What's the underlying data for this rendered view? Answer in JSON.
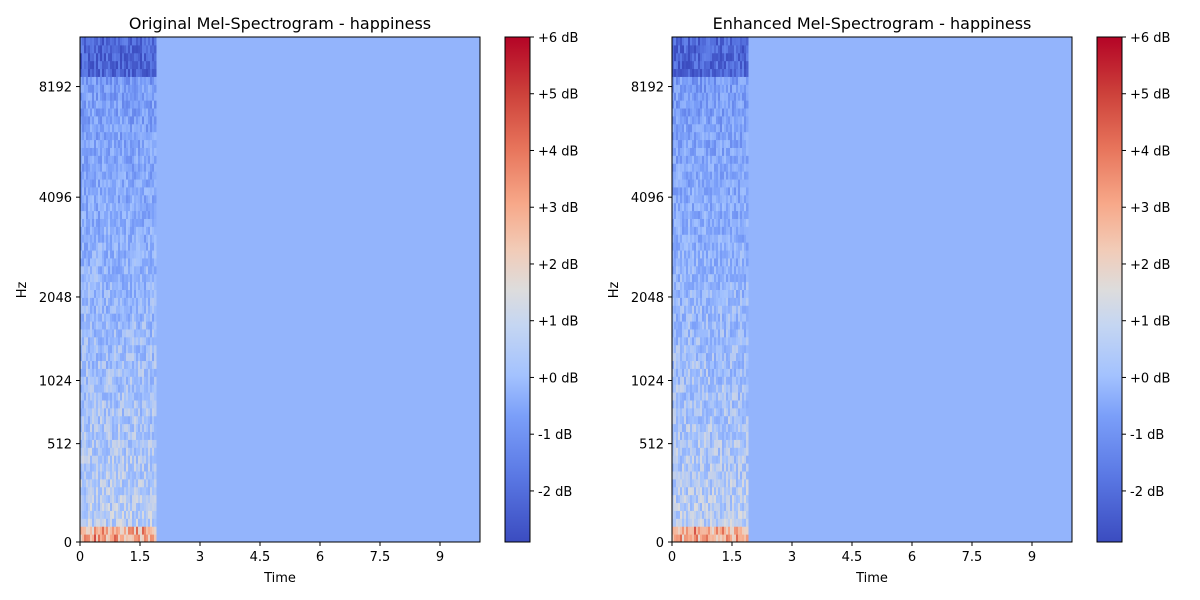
{
  "chart_data": [
    {
      "type": "heatmap",
      "title": "Original Mel-Spectrogram - happiness",
      "xlabel": "Time",
      "ylabel": "Hz",
      "x_ticks": [
        "0",
        "1.5",
        "3",
        "4.5",
        "6",
        "7.5",
        "9"
      ],
      "x_tick_values": [
        0,
        1.5,
        3,
        4.5,
        6,
        7.5,
        9
      ],
      "xlim": [
        0,
        10
      ],
      "y_ticks": [
        "0",
        "512",
        "1024",
        "2048",
        "4096",
        "8192"
      ],
      "y_scale": "mel",
      "signal_end_time": 1.9,
      "fill_level_db": 0,
      "colorbar": {
        "colormap": "coolwarm",
        "range_db": [
          -2.9,
          6
        ],
        "tick_labels": [
          "+6 dB",
          "+5 dB",
          "+4 dB",
          "+3 dB",
          "+2 dB",
          "+1 dB",
          "+0 dB",
          "-1 dB",
          "-2 dB"
        ],
        "tick_values": [
          6,
          5,
          4,
          3,
          2,
          1,
          0,
          -1,
          -2
        ]
      }
    },
    {
      "type": "heatmap",
      "title": "Enhanced Mel-Spectrogram - happiness",
      "xlabel": "Time",
      "ylabel": "Hz",
      "x_ticks": [
        "0",
        "1.5",
        "3",
        "4.5",
        "6",
        "7.5",
        "9"
      ],
      "x_tick_values": [
        0,
        1.5,
        3,
        4.5,
        6,
        7.5,
        9
      ],
      "xlim": [
        0,
        10
      ],
      "y_ticks": [
        "0",
        "512",
        "1024",
        "2048",
        "4096",
        "8192"
      ],
      "y_scale": "mel",
      "signal_end_time": 1.9,
      "fill_level_db": 0,
      "colorbar": {
        "colormap": "coolwarm",
        "range_db": [
          -2.9,
          6
        ],
        "tick_labels": [
          "+6 dB",
          "+5 dB",
          "+4 dB",
          "+3 dB",
          "+2 dB",
          "+1 dB",
          "+0 dB",
          "-1 dB",
          "-2 dB"
        ],
        "tick_values": [
          6,
          5,
          4,
          3,
          2,
          1,
          0,
          -1,
          -2
        ]
      }
    }
  ]
}
